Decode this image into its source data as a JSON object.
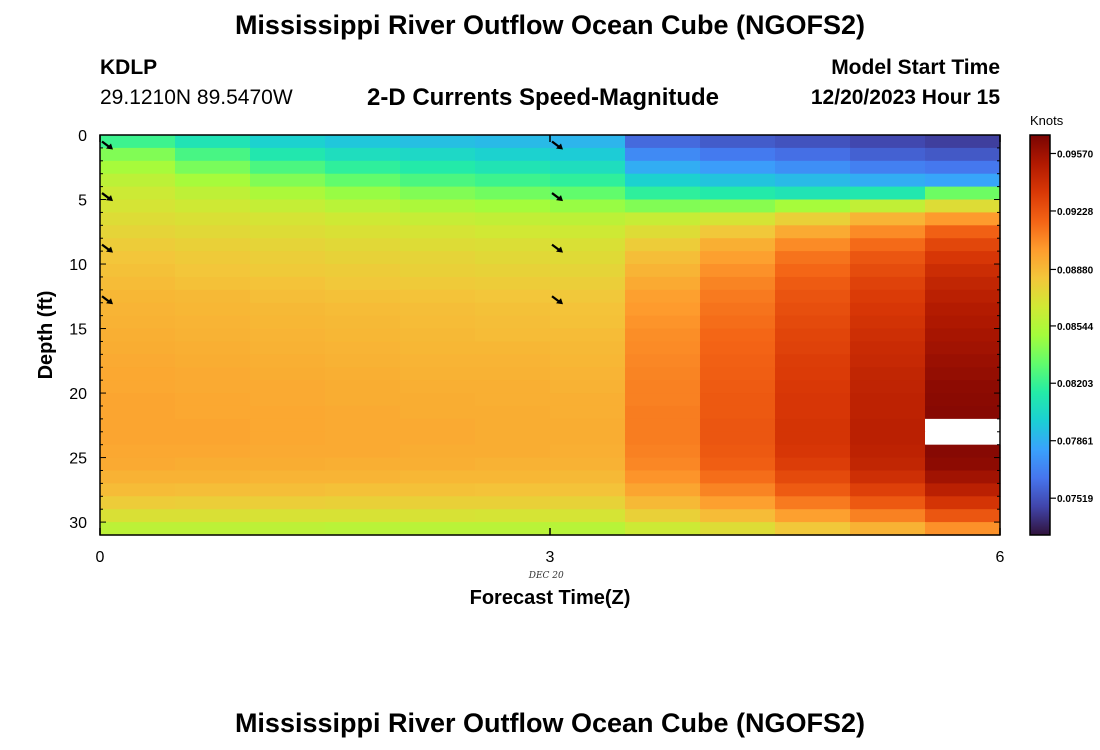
{
  "page": {
    "title": "Mississippi River Outflow Ocean Cube (NGOFS2)",
    "title_repeat": "Mississippi River Outflow Ocean Cube (NGOFS2)",
    "station": "KDLP",
    "coords": "29.1210N  89.5470W",
    "subtitle": "2-D Currents Speed-Magnitude",
    "model_start_label": "Model Start Time",
    "model_start_value": "12/20/2023 Hour 15"
  },
  "chart_data": {
    "type": "heatmap",
    "xlabel": "Forecast Time(Z)",
    "ylabel": "Depth (ft)",
    "date_label": "DEC 20",
    "xlim": [
      0,
      6
    ],
    "ylim": [
      0,
      31
    ],
    "y_inverted": true,
    "x_ticks": [
      "0",
      "3",
      "6"
    ],
    "y_ticks": [
      "0",
      "5",
      "10",
      "15",
      "20",
      "25",
      "30"
    ],
    "colorbar": {
      "units": "Knots",
      "min": 0.073,
      "max": 0.0968,
      "tick_values": [
        0.07519,
        0.07861,
        0.08203,
        0.08544,
        0.0888,
        0.09228,
        0.0957
      ],
      "tick_labels": [
        "0.07519",
        "0.07861",
        "0.08203",
        "0.08544",
        "0.08880",
        "0.09228",
        "0.09570"
      ],
      "palette": [
        "#30123b",
        "#4145ab",
        "#4675ed",
        "#39a2fc",
        "#1bcfd4",
        "#24eca6",
        "#61fc6c",
        "#a4fc3b",
        "#d1e834",
        "#f3c63a",
        "#fe9b2d",
        "#f36315",
        "#d93806",
        "#b11901",
        "#7a0403"
      ]
    },
    "x": [
      0,
      0.5,
      1,
      1.5,
      2,
      2.5,
      3,
      3.5,
      4,
      4.5,
      5,
      5.5,
      6
    ],
    "depth": [
      0,
      1,
      2,
      3,
      4,
      5,
      6,
      7,
      8,
      9,
      10,
      11,
      12,
      13,
      14,
      15,
      16,
      17,
      18,
      19,
      20,
      21,
      22,
      23,
      24,
      25,
      26,
      27,
      28,
      29,
      30,
      31
    ],
    "speed_grid": {
      "note": "rows = depth levels (top to bottom), columns = forecast intervals",
      "values": [
        [
          0.0822,
          0.081,
          0.08,
          0.0795,
          0.0792,
          0.079,
          0.0788,
          0.076,
          0.0755,
          0.0752,
          0.0748,
          0.0745
        ],
        [
          0.084,
          0.0825,
          0.0812,
          0.0806,
          0.0803,
          0.08,
          0.0797,
          0.0772,
          0.0766,
          0.0762,
          0.0757,
          0.0754
        ],
        [
          0.085,
          0.0838,
          0.0826,
          0.0818,
          0.0814,
          0.081,
          0.0806,
          0.0785,
          0.0779,
          0.0774,
          0.0768,
          0.0765
        ],
        [
          0.0858,
          0.085,
          0.084,
          0.0832,
          0.0826,
          0.0822,
          0.0818,
          0.08,
          0.0794,
          0.079,
          0.0785,
          0.0782
        ],
        [
          0.0864,
          0.0859,
          0.0852,
          0.0846,
          0.084,
          0.0836,
          0.0832,
          0.0818,
          0.0814,
          0.081,
          0.0812,
          0.0835
        ],
        [
          0.0868,
          0.0865,
          0.0861,
          0.0857,
          0.0852,
          0.0849,
          0.0846,
          0.084,
          0.0842,
          0.085,
          0.086,
          0.0872
        ],
        [
          0.0872,
          0.087,
          0.0868,
          0.0865,
          0.0862,
          0.086,
          0.0858,
          0.0862,
          0.0868,
          0.0878,
          0.089,
          0.09
        ],
        [
          0.0876,
          0.0874,
          0.0872,
          0.087,
          0.0868,
          0.0866,
          0.0865,
          0.0872,
          0.0882,
          0.0894,
          0.0905,
          0.0918
        ],
        [
          0.088,
          0.0878,
          0.0876,
          0.0874,
          0.0872,
          0.0871,
          0.087,
          0.088,
          0.0892,
          0.0905,
          0.0915,
          0.0928
        ],
        [
          0.0883,
          0.0881,
          0.0879,
          0.0877,
          0.0876,
          0.0874,
          0.0873,
          0.0886,
          0.0898,
          0.0912,
          0.0922,
          0.0935
        ],
        [
          0.0885,
          0.0883,
          0.0881,
          0.088,
          0.0878,
          0.0877,
          0.0876,
          0.089,
          0.0903,
          0.0916,
          0.0926,
          0.094
        ],
        [
          0.0887,
          0.0885,
          0.0884,
          0.0882,
          0.0881,
          0.088,
          0.0879,
          0.0894,
          0.0907,
          0.092,
          0.093,
          0.0944
        ],
        [
          0.0889,
          0.0888,
          0.0886,
          0.0885,
          0.0884,
          0.0883,
          0.0882,
          0.0898,
          0.091,
          0.0923,
          0.0933,
          0.0947
        ],
        [
          0.089,
          0.0889,
          0.0888,
          0.0887,
          0.0886,
          0.0885,
          0.0884,
          0.09,
          0.0912,
          0.0925,
          0.0935,
          0.095
        ],
        [
          0.0891,
          0.089,
          0.0889,
          0.0888,
          0.0887,
          0.0886,
          0.0885,
          0.0902,
          0.0914,
          0.0927,
          0.0937,
          0.0952
        ],
        [
          0.0892,
          0.0891,
          0.089,
          0.0889,
          0.0888,
          0.0887,
          0.0887,
          0.0904,
          0.0916,
          0.0929,
          0.0939,
          0.0954
        ],
        [
          0.0893,
          0.0892,
          0.0891,
          0.089,
          0.0889,
          0.0889,
          0.0888,
          0.0905,
          0.0917,
          0.093,
          0.0941,
          0.0956
        ],
        [
          0.0894,
          0.0893,
          0.0892,
          0.0891,
          0.089,
          0.089,
          0.0889,
          0.0906,
          0.0918,
          0.0932,
          0.0942,
          0.0958
        ],
        [
          0.0895,
          0.0894,
          0.0893,
          0.0892,
          0.0891,
          0.0891,
          0.089,
          0.0907,
          0.0919,
          0.0933,
          0.0944,
          0.096
        ],
        [
          0.0895,
          0.0894,
          0.0894,
          0.0893,
          0.0892,
          0.0892,
          0.0891,
          0.0908,
          0.092,
          0.0934,
          0.0945,
          0.0962
        ],
        [
          0.0896,
          0.0895,
          0.0894,
          0.0893,
          0.0893,
          0.0892,
          0.0892,
          0.0908,
          0.0921,
          0.0935,
          0.0946,
          0.0963
        ],
        [
          0.0896,
          0.0895,
          0.0895,
          0.0894,
          0.0893,
          0.0893,
          0.0892,
          0.0909,
          0.0921,
          0.0935,
          0.0946,
          0.0964
        ],
        [
          0.0896,
          0.0896,
          0.0895,
          0.0894,
          0.0894,
          0.0893,
          0.0893,
          0.0909,
          0.0922,
          0.0936,
          0.0947,
          null
        ],
        [
          0.0896,
          0.0896,
          0.0895,
          0.0894,
          0.0894,
          0.0893,
          0.0893,
          0.0909,
          0.0922,
          0.0936,
          0.0947,
          null
        ],
        [
          0.0895,
          0.0895,
          0.0894,
          0.0894,
          0.0893,
          0.0893,
          0.0892,
          0.0908,
          0.0921,
          0.0935,
          0.0946,
          0.0964
        ],
        [
          0.0894,
          0.0893,
          0.0893,
          0.0892,
          0.0892,
          0.0891,
          0.0891,
          0.0906,
          0.0919,
          0.0932,
          0.0944,
          0.0962
        ],
        [
          0.0891,
          0.0891,
          0.089,
          0.089,
          0.0889,
          0.0889,
          0.0888,
          0.0902,
          0.0914,
          0.0927,
          0.0939,
          0.0956
        ],
        [
          0.0887,
          0.0886,
          0.0886,
          0.0885,
          0.0885,
          0.0884,
          0.0884,
          0.0896,
          0.0907,
          0.092,
          0.0931,
          0.0947
        ],
        [
          0.088,
          0.0879,
          0.0879,
          0.0878,
          0.0878,
          0.0878,
          0.0877,
          0.0888,
          0.0898,
          0.091,
          0.0921,
          0.0936
        ],
        [
          0.087,
          0.087,
          0.0869,
          0.0869,
          0.0869,
          0.0868,
          0.0868,
          0.0878,
          0.0887,
          0.0898,
          0.0908,
          0.0922
        ],
        [
          0.0858,
          0.0858,
          0.0858,
          0.0857,
          0.0857,
          0.0857,
          0.0856,
          0.0864,
          0.0872,
          0.0882,
          0.0891,
          0.0903
        ]
      ]
    },
    "vectors": {
      "note": "current direction arrows drawn at forecast hours 0 and 3",
      "times": [
        0,
        3
      ],
      "depths": [
        0.5,
        4.5,
        8.5,
        12.5
      ],
      "direction": "southeast"
    }
  }
}
